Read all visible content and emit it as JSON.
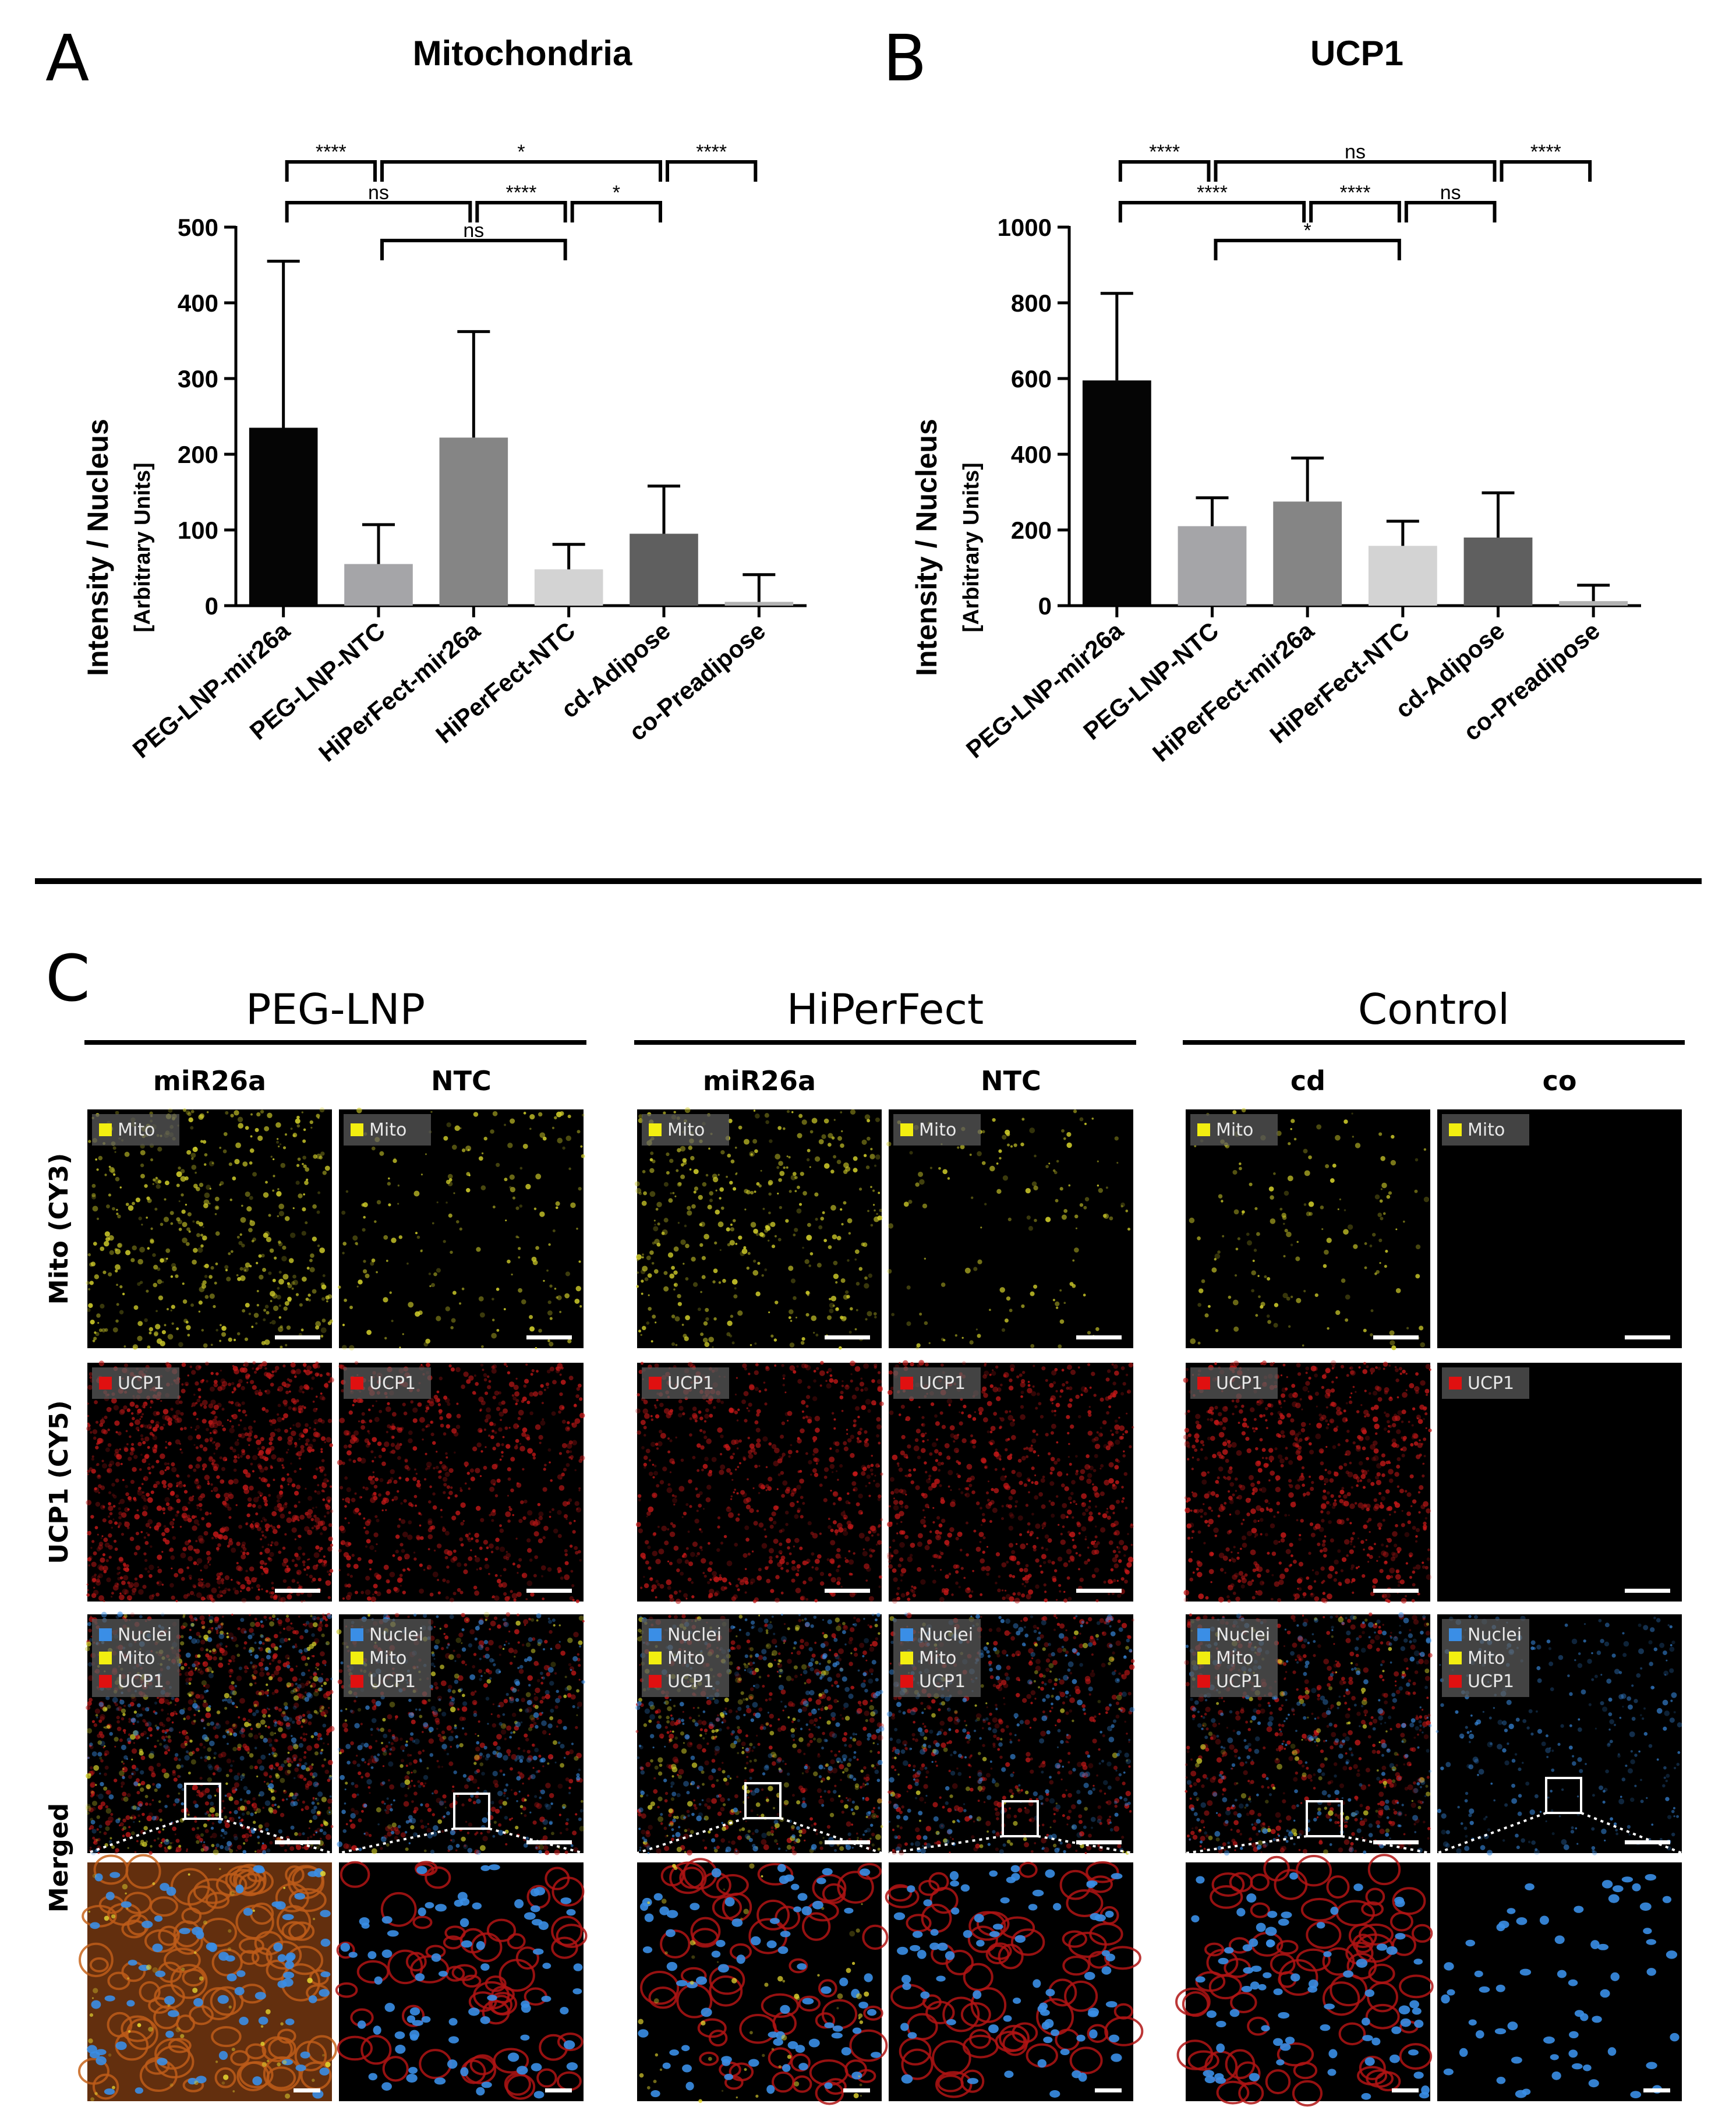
{
  "panels": {
    "a_letter": "A",
    "b_letter": "B",
    "c_letter": "C"
  },
  "chart_data": [
    {
      "type": "bar",
      "title": "Mitochondria",
      "ylabel": "Intensity / Nucleus",
      "ylabel_sub": "[Arbitrary Units]",
      "categories": [
        "PEG-LNP-mir26a",
        "PEG-LNP-NTC",
        "HiPerFect-mir26a",
        "HiPerFect-NTC",
        "cd-Adipose",
        "co-Preadipose"
      ],
      "values": [
        235,
        55,
        222,
        48,
        95,
        5
      ],
      "errors": [
        220,
        52,
        140,
        33,
        63,
        36
      ],
      "colors": [
        "#050505",
        "#a5a5a8",
        "#858585",
        "#d3d3d3",
        "#5f5f5f",
        "#b2b2b2"
      ],
      "ylim": [
        0,
        500
      ],
      "yticks": [
        0,
        100,
        200,
        300,
        400,
        500
      ],
      "significance": [
        {
          "from": 0,
          "to": 1,
          "label": "****",
          "level": 0
        },
        {
          "from": 1,
          "to": 4,
          "label": "*",
          "level": 0
        },
        {
          "from": 4,
          "to": 5,
          "label": "****",
          "level": 0
        },
        {
          "from": 0,
          "to": 2,
          "label": "ns",
          "level": 1
        },
        {
          "from": 2,
          "to": 3,
          "label": "****",
          "level": 1
        },
        {
          "from": 3,
          "to": 4,
          "label": "*",
          "level": 1
        },
        {
          "from": 1,
          "to": 3,
          "label": "ns",
          "level": 2
        }
      ]
    },
    {
      "type": "bar",
      "title": "UCP1",
      "ylabel": "Intensity / Nucleus",
      "ylabel_sub": "[Arbitrary Units]",
      "categories": [
        "PEG-LNP-mir26a",
        "PEG-LNP-NTC",
        "HiPerFect-mir26a",
        "HiPerFect-NTC",
        "cd-Adipose",
        "co-Preadipose"
      ],
      "values": [
        595,
        210,
        275,
        158,
        180,
        12
      ],
      "errors": [
        230,
        75,
        115,
        65,
        118,
        42
      ],
      "colors": [
        "#050505",
        "#a5a5a8",
        "#858585",
        "#d3d3d3",
        "#5f5f5f",
        "#b2b2b2"
      ],
      "ylim": [
        0,
        1000
      ],
      "yticks": [
        0,
        200,
        400,
        600,
        800,
        1000
      ],
      "significance": [
        {
          "from": 0,
          "to": 1,
          "label": "****",
          "level": 0
        },
        {
          "from": 1,
          "to": 4,
          "label": "ns",
          "level": 0
        },
        {
          "from": 4,
          "to": 5,
          "label": "****",
          "level": 0
        },
        {
          "from": 0,
          "to": 2,
          "label": "****",
          "level": 1
        },
        {
          "from": 2,
          "to": 3,
          "label": "****",
          "level": 1
        },
        {
          "from": 3,
          "to": 4,
          "label": "ns",
          "level": 1
        },
        {
          "from": 1,
          "to": 3,
          "label": "*",
          "level": 2
        }
      ]
    }
  ],
  "microscopy": {
    "groups": [
      "PEG-LNP",
      "HiPerFect",
      "Control"
    ],
    "columns": [
      "miR26a",
      "NTC",
      "miR26a",
      "NTC",
      "cd",
      "co"
    ],
    "rows": [
      "Mito (CY3)",
      "UCP1 (CY5)",
      "Merged"
    ],
    "legend": {
      "nuclei": {
        "label": "Nuclei",
        "color": "#3a8ee6"
      },
      "mito": {
        "label": "Mito",
        "color": "#f2ee10"
      },
      "ucp1": {
        "label": "UCP1",
        "color": "#e01010"
      }
    },
    "mito_intensity": [
      0.55,
      0.22,
      0.45,
      0.15,
      0.18,
      0.0
    ],
    "ucp1_intensity": [
      0.75,
      0.45,
      0.45,
      0.48,
      0.55,
      0.0
    ]
  }
}
